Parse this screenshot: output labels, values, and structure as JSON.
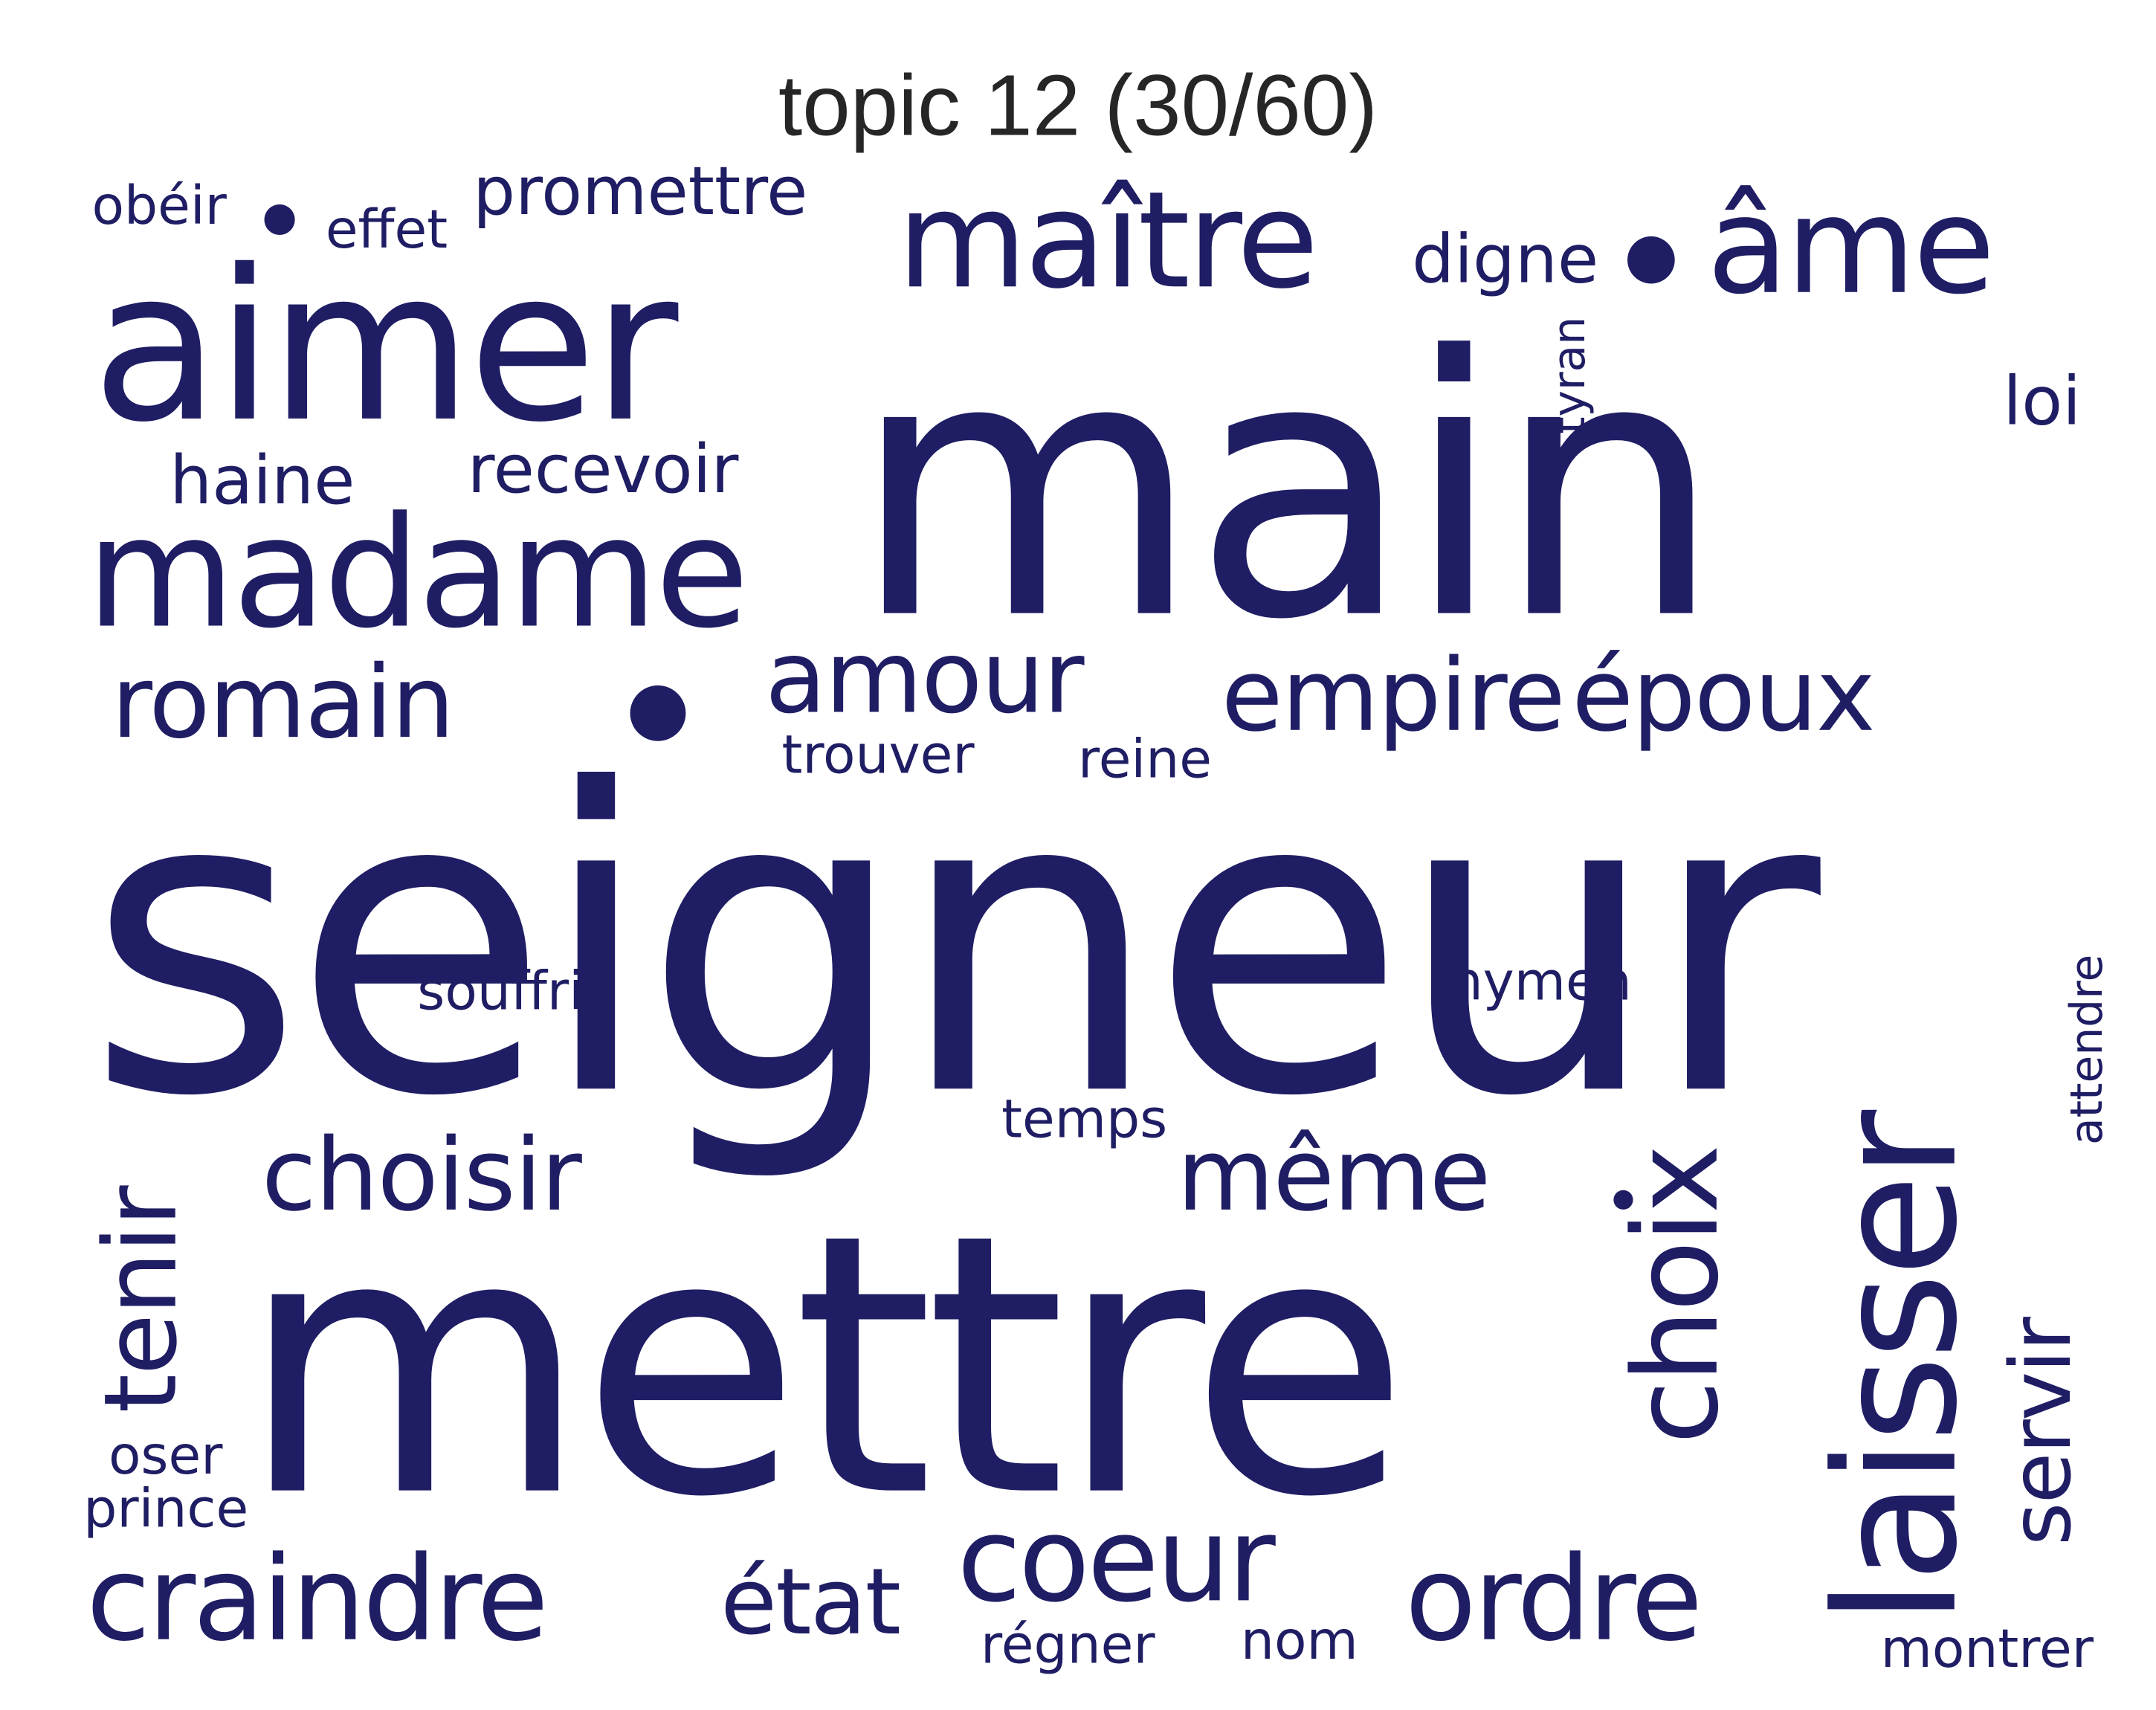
{
  "title": "topic 12 (30/60)",
  "word_color": "#1f1d63",
  "words": {
    "seigneur": "seigneur",
    "main": "main",
    "mettre": "mettre",
    "aimer": "aimer",
    "madame": "madame",
    "maitre": "maître",
    "ame": "âme",
    "romain": "romain",
    "amour": "amour",
    "empire": "empire",
    "epoux": "époux",
    "choisir": "choisir",
    "meme": "même",
    "craindre": "craindre",
    "etat": "état",
    "coeur": "coeur",
    "ordre": "ordre",
    "laisser": "laisser",
    "choix": "choix",
    "tenir": "tenir",
    "servir": "servir",
    "promettre": "promettre",
    "obeir": "obéir",
    "effet": "effet",
    "digne": "digne",
    "haine": "haine",
    "recevoir": "recevoir",
    "tyran": "tyran",
    "loi": "loi",
    "trouver": "trouver",
    "reine": "reine",
    "souffrir": "souffrir",
    "hymen": "hymen",
    "temps": "temps",
    "attendre": "attendre",
    "oser": "oser",
    "prince": "prince",
    "regner": "régner",
    "nom": "nom",
    "montrer": "montrer"
  }
}
